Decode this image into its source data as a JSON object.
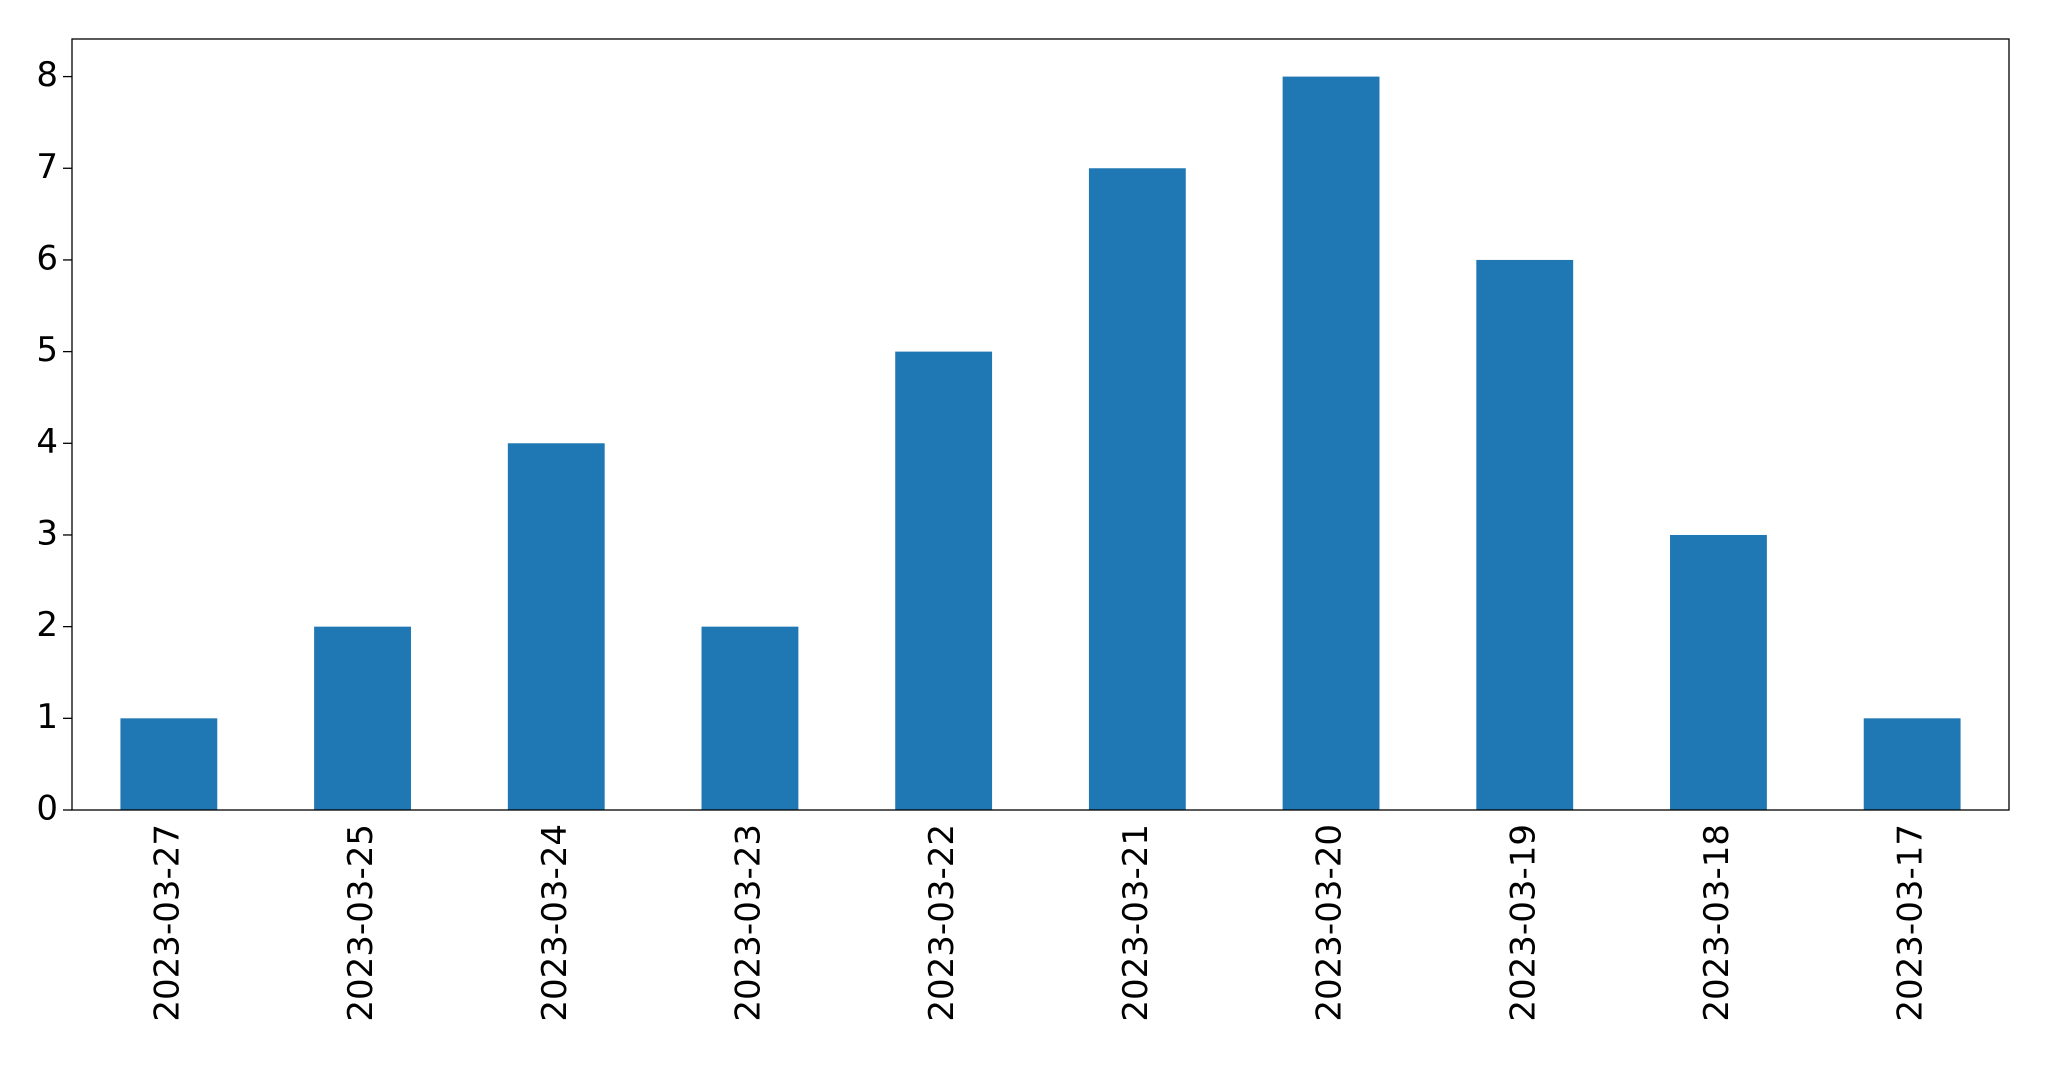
{
  "chart_data": {
    "type": "bar",
    "categories": [
      "2023-03-27",
      "2023-03-25",
      "2023-03-24",
      "2023-03-23",
      "2023-03-22",
      "2023-03-21",
      "2023-03-20",
      "2023-03-19",
      "2023-03-18",
      "2023-03-17"
    ],
    "values": [
      1,
      2,
      4,
      2,
      5,
      7,
      8,
      6,
      3,
      1
    ],
    "color": "#1f77b4",
    "ylim": [
      0,
      8.41
    ],
    "yticks": [
      0,
      1,
      2,
      3,
      4,
      5,
      6,
      7,
      8
    ],
    "grid": false
  }
}
